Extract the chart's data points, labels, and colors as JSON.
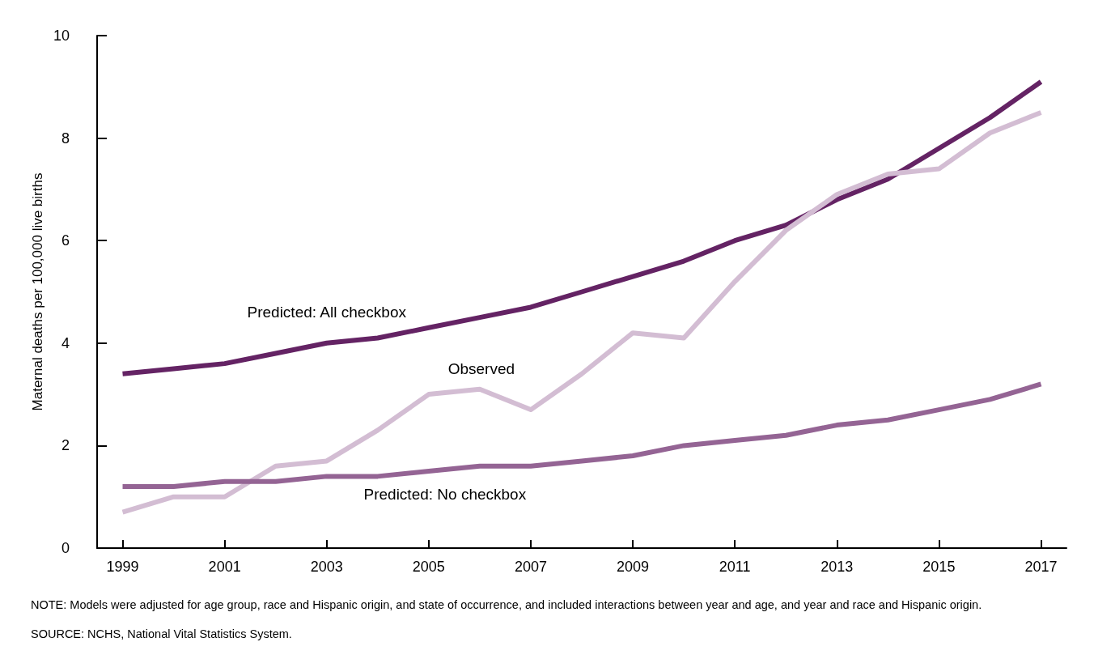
{
  "chart_data": {
    "type": "line",
    "ylabel": "Maternal deaths per 100,000 live births",
    "x": [
      1999,
      2000,
      2001,
      2002,
      2003,
      2004,
      2005,
      2006,
      2007,
      2008,
      2009,
      2010,
      2011,
      2012,
      2013,
      2014,
      2015,
      2016,
      2017
    ],
    "xlim": [
      1998.5,
      2017.5
    ],
    "xticks": [
      1999,
      2001,
      2003,
      2005,
      2007,
      2009,
      2011,
      2013,
      2015,
      2017
    ],
    "ylim": [
      0,
      10
    ],
    "yticks": [
      0,
      2,
      4,
      6,
      8,
      10
    ],
    "grid": false,
    "legend": false,
    "marker": "none",
    "line_style": "solid",
    "series": [
      {
        "name": "Predicted: All checkbox",
        "color": "#642364",
        "values": [
          3.4,
          3.5,
          3.6,
          3.8,
          4.0,
          4.1,
          4.3,
          4.5,
          4.7,
          5.0,
          5.3,
          5.6,
          6.0,
          6.3,
          6.8,
          7.2,
          7.8,
          8.4,
          9.1
        ]
      },
      {
        "name": "Observed",
        "color": "#d3bdd3",
        "values": [
          0.7,
          1.0,
          1.0,
          1.6,
          1.7,
          2.3,
          3.0,
          3.1,
          2.7,
          3.4,
          4.2,
          4.1,
          5.2,
          6.2,
          6.9,
          7.3,
          7.4,
          8.1,
          8.5
        ]
      },
      {
        "name": "Predicted: No checkbox",
        "color": "#946494",
        "values": [
          1.2,
          1.2,
          1.3,
          1.3,
          1.4,
          1.4,
          1.5,
          1.6,
          1.6,
          1.7,
          1.8,
          2.0,
          2.1,
          2.2,
          2.4,
          2.5,
          2.7,
          2.9,
          3.2
        ]
      }
    ],
    "annotations": [
      "NOTE: Models were adjusted for age group, race and Hispanic origin, and state of occurrence, and included interactions between year and age, and year and race and Hispanic origin.",
      "SOURCE: NCHS, National Vital Statistics System."
    ]
  }
}
